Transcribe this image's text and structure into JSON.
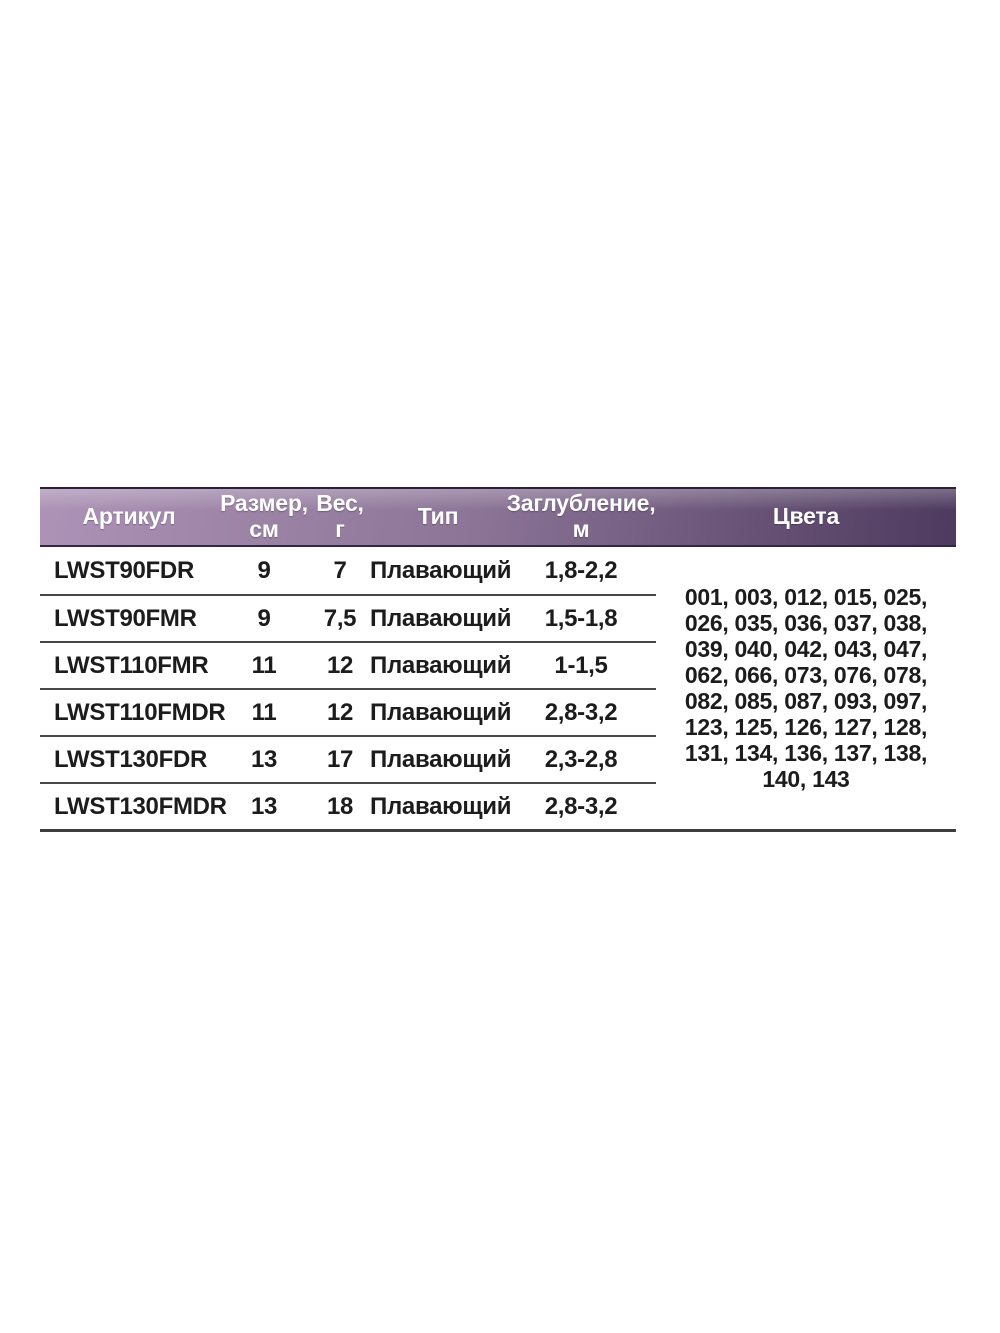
{
  "table": {
    "headers": {
      "article": "Артикул",
      "size_line1": "Размер,",
      "size_line2": "см",
      "weight_line1": "Вес,",
      "weight_line2": "г",
      "type": "Тип",
      "depth_line1": "Заглубление,",
      "depth_line2": "м",
      "colors": "Цвета"
    },
    "rows": [
      {
        "article": "LWST90FDR",
        "size": "9",
        "weight": "7",
        "type": "Плавающий",
        "depth": "1,8-2,2"
      },
      {
        "article": "LWST90FMR",
        "size": "9",
        "weight": "7,5",
        "type": "Плавающий",
        "depth": "1,5-1,8"
      },
      {
        "article": "LWST110FMR",
        "size": "11",
        "weight": "12",
        "type": "Плавающий",
        "depth": "1-1,5"
      },
      {
        "article": "LWST110FMDR",
        "size": "11",
        "weight": "12",
        "type": "Плавающий",
        "depth": "2,8-3,2"
      },
      {
        "article": "LWST130FDR",
        "size": "13",
        "weight": "17",
        "type": "Плавающий",
        "depth": "2,3-2,8"
      },
      {
        "article": "LWST130FMDR",
        "size": "13",
        "weight": "18",
        "type": "Плавающий",
        "depth": "2,8-3,2"
      }
    ],
    "colors_lines": [
      "001, 003, 012, 015, 025,",
      "026, 035, 036, 037, 038,",
      "039, 040, 042, 043, 047,",
      "062, 066, 073, 076, 078,",
      "082, 085, 087, 093, 097,",
      "123, 125, 126, 127, 128,",
      "131, 134, 136, 137, 138,",
      "140, 143"
    ],
    "style": {
      "header_gradient_left": "#ad93b6",
      "header_gradient_mid": "#8b7496",
      "header_gradient_right": "#4d3a5e",
      "header_text_color": "#ffffff",
      "body_text_color": "#1c1c1c",
      "separator_color": "#474747"
    }
  }
}
